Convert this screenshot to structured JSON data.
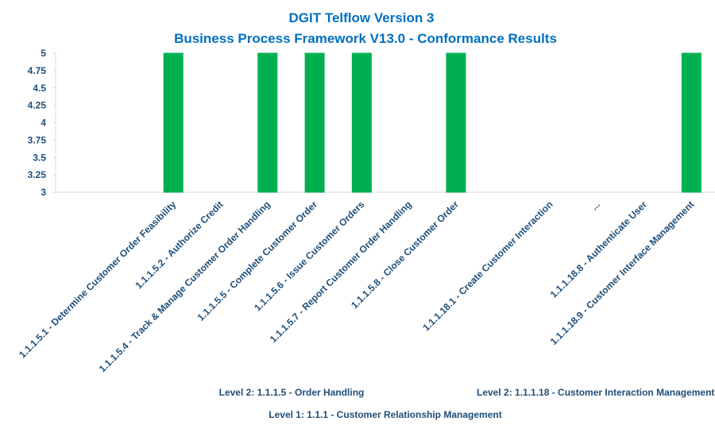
{
  "chart_data": {
    "type": "bar",
    "title": [
      "DGIT Telflow Version 3",
      "Business Process Framework V13.0 - Conformance Results"
    ],
    "categories": [
      null,
      null,
      "1.1.1.5.1 - Determine Customer Order Feasibility",
      "1.1.1.5.2 - Authorize Credit",
      "1.1.1.5.4 - Track & Manage Customer Order Handling",
      "1.1.1.5.5 - Complete Customer Order",
      "1.1.1.5.6 - Issue Customer Orders",
      "1.1.1.5.7 - Report Customer Order Handling",
      "1.1.1.5.8 - Close Customer Order",
      null,
      "1.1.1.18.1 - Create Customer Interaction",
      "...",
      "1.1.1.18.8 - Authenticate User",
      "1.1.1.18.9 - Customer Interface Management"
    ],
    "values": [
      null,
      null,
      5,
      3,
      5,
      5,
      5,
      3,
      5,
      null,
      3,
      3,
      3,
      5
    ],
    "color": "#00b050",
    "ylim": [
      3,
      5
    ],
    "yticks": [
      3,
      3.25,
      3.5,
      3.75,
      4,
      4.25,
      4.5,
      4.75,
      5
    ],
    "grid": false,
    "group_labels": [
      "Level 2: 1.1.1.5 - Order Handling",
      "Level 2: 1.1.1.18 - Customer Interaction Management",
      "Level 1: 1.1.1 - Customer Relationship Management"
    ]
  }
}
